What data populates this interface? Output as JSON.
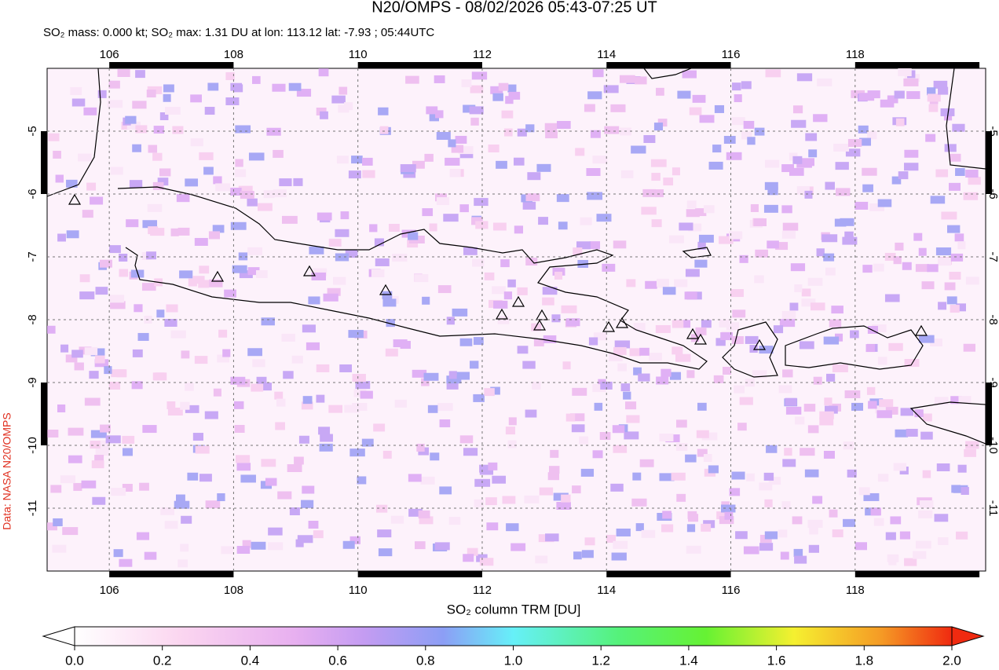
{
  "title": "N20/OMPS - 08/02/2026 05:43-07:25 UT",
  "subtitle": "SO₂ mass: 0.000 kt; SO₂ max: 1.31 DU at lon: 113.12 lat: -7.93 ; 05:44UTC",
  "credit": "Data: NASA N20/OMPS",
  "map": {
    "lonlim": [
      105,
      120.1
    ],
    "latlim": [
      -12,
      -4
    ],
    "lon_ticks": [
      106,
      108,
      110,
      112,
      114,
      116,
      118
    ],
    "lat_ticks": [
      -5,
      -6,
      -7,
      -8,
      -9,
      -10,
      -11
    ]
  },
  "colorbar": {
    "label": "SO₂ column TRM [DU]",
    "range": [
      0,
      2
    ],
    "ticks": [
      {
        "value": 0,
        "label": "0.0"
      },
      {
        "value": 0.2,
        "label": "0.2"
      },
      {
        "value": 0.4,
        "label": "0.4"
      },
      {
        "value": 0.6,
        "label": "0.6"
      },
      {
        "value": 0.8,
        "label": "0.8"
      },
      {
        "value": 1,
        "label": "1.0"
      },
      {
        "value": 1.2,
        "label": "1.2"
      },
      {
        "value": 1.4,
        "label": "1.4"
      },
      {
        "value": 1.6,
        "label": "1.6"
      },
      {
        "value": 1.8,
        "label": "1.8"
      },
      {
        "value": 2,
        "label": "2.0"
      }
    ]
  }
}
